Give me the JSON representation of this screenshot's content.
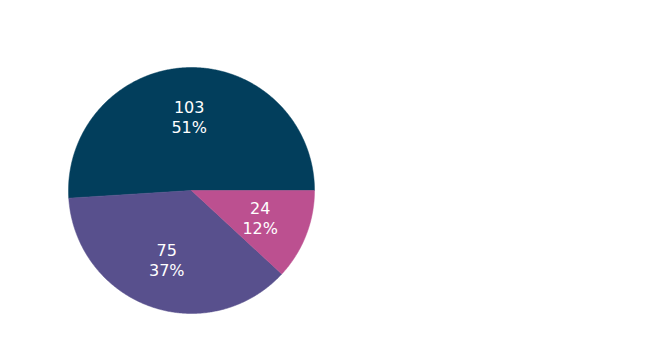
{
  "chart_data": {
    "type": "pie",
    "values": [
      103,
      75,
      24
    ],
    "percentage_labels": [
      "51%",
      "37%",
      "12%"
    ],
    "colors": [
      "#023e5c",
      "#58508d",
      "#bc5090"
    ],
    "data_labels": true
  }
}
